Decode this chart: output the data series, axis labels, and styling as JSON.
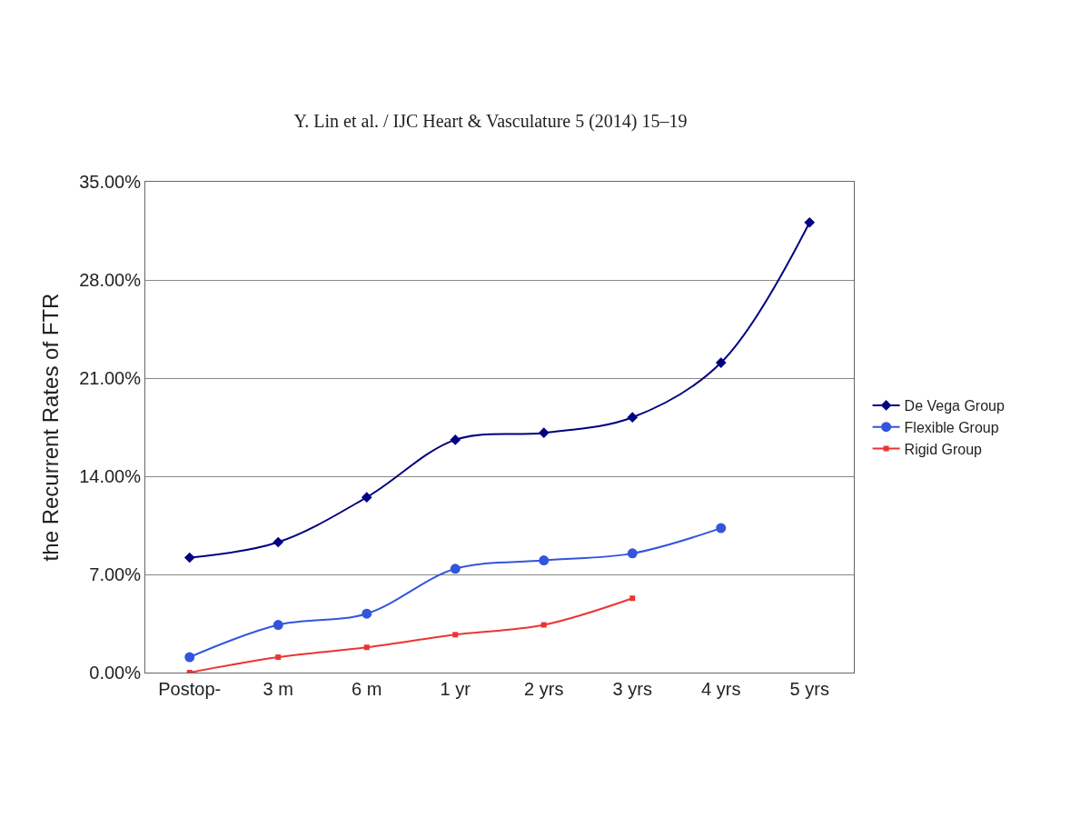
{
  "chart_data": {
    "type": "line",
    "subtitle": "Y. Lin et al. / IJC Heart & Vasculature 5 (2014) 15–19",
    "ylabel": "the Recurrent Rates of FTR",
    "categories": [
      "Postop-",
      "3 m",
      "6 m",
      "1 yr",
      "2 yrs",
      "3 yrs",
      "4 yrs",
      "5 yrs"
    ],
    "series": [
      {
        "name": "De Vega Group",
        "color": "#000080",
        "marker": "diamond",
        "values": [
          8.2,
          9.3,
          12.5,
          16.6,
          17.1,
          18.2,
          22.1,
          32.1
        ]
      },
      {
        "name": "Flexible Group",
        "color": "#3355dd",
        "marker": "circle",
        "values": [
          1.1,
          3.4,
          4.2,
          7.4,
          8.0,
          8.5,
          10.3,
          null
        ]
      },
      {
        "name": "Rigid Group",
        "color": "#ee3333",
        "marker": "square",
        "values": [
          0.0,
          1.1,
          1.8,
          2.7,
          3.4,
          5.3,
          null,
          null
        ]
      }
    ],
    "ylim": [
      0,
      35
    ],
    "yticks": [
      {
        "value": 0,
        "label": "0.00%"
      },
      {
        "value": 7,
        "label": "7.00%"
      },
      {
        "value": 14,
        "label": "14.00%"
      },
      {
        "value": 21,
        "label": "21.00%"
      },
      {
        "value": 28,
        "label": "28.00%"
      },
      {
        "value": 35,
        "label": "35.00%"
      }
    ],
    "grid": "y",
    "legend": "right",
    "line_style": "solid"
  }
}
